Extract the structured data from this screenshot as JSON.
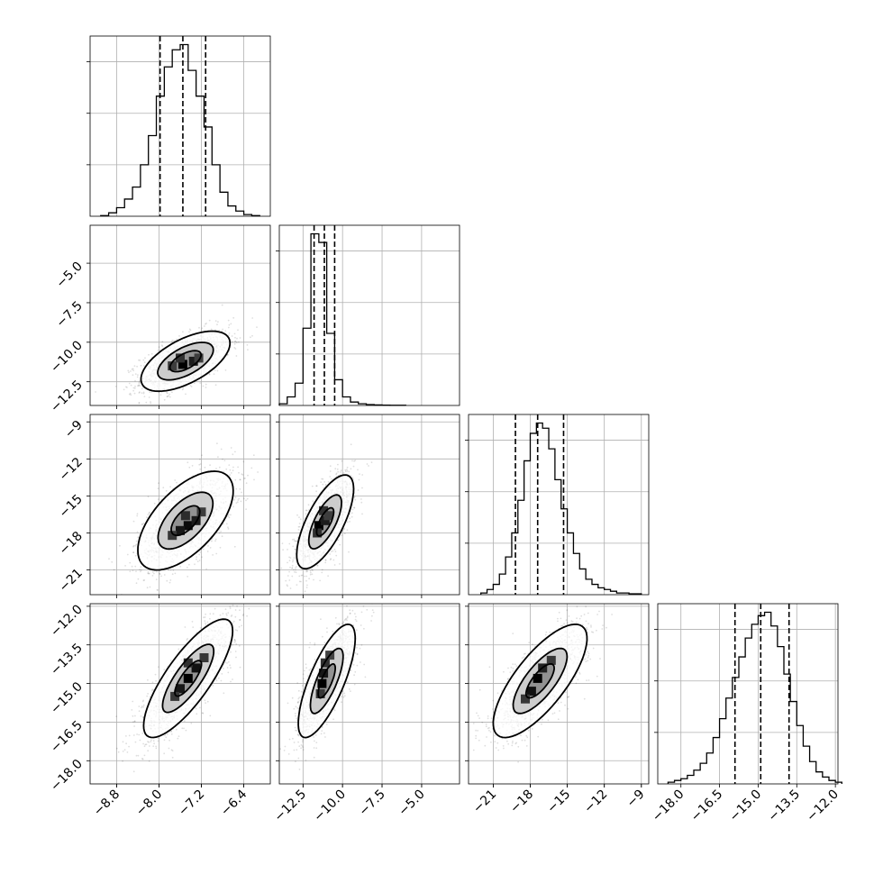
{
  "chart_data": {
    "type": "corner",
    "parameters": 4,
    "grid": true,
    "quantiles": [
      0.16,
      0.5,
      0.84
    ],
    "colors": {
      "ink": "#000000",
      "grid": "#b0b0b0",
      "scatter": "#808080"
    },
    "param_ranges": [
      [
        -9.3,
        -5.9
      ],
      [
        -14.0,
        -2.6
      ],
      [
        -23.0,
        -8.4
      ],
      [
        -18.9,
        -11.9
      ]
    ],
    "param_ticks": [
      [
        "−8.8",
        "−8.0",
        "−7.2",
        "−6.4"
      ],
      [
        "−12.5",
        "−10.0",
        "−7.5",
        "−5.0"
      ],
      [
        "−21",
        "−18",
        "−15",
        "−12",
        "−9"
      ],
      [
        "−18.0",
        "−16.5",
        "−15.0",
        "−13.5",
        "−12.0"
      ]
    ],
    "y_ticks": [
      null,
      [
        "−12.5",
        "−10.0",
        "−7.5",
        "−5.0"
      ],
      [
        "−21",
        "−18",
        "−15",
        "−12",
        "−9"
      ],
      [
        "−18.0",
        "−16.5",
        "−15.0",
        "−13.5",
        "−12.0"
      ]
    ],
    "marginals": [
      {
        "param": 0,
        "bin_edges": [
          -9.1,
          -8.95,
          -8.8,
          -8.65,
          -8.5,
          -8.35,
          -8.2,
          -8.05,
          -7.9,
          -7.75,
          -7.6,
          -7.45,
          -7.3,
          -7.15,
          -7.0,
          -6.85,
          -6.7,
          -6.55,
          -6.4,
          -6.25,
          -6.1
        ],
        "counts": [
          0.004,
          0.02,
          0.05,
          0.1,
          0.17,
          0.3,
          0.47,
          0.7,
          0.87,
          0.97,
          1.0,
          0.85,
          0.7,
          0.52,
          0.3,
          0.14,
          0.06,
          0.03,
          0.01,
          0.004
        ],
        "quantiles": [
          -7.98,
          -7.55,
          -7.12
        ],
        "y_ticks": [
          0.3,
          0.6,
          0.9
        ]
      },
      {
        "param": 1,
        "bin_edges": [
          -14.0,
          -13.5,
          -13.0,
          -12.5,
          -12.0,
          -11.5,
          -11.0,
          -10.5,
          -10.0,
          -9.5,
          -9.0,
          -8.5,
          -8.0,
          -7.5,
          -7.0,
          -6.5,
          -6.0
        ],
        "counts": [
          0.01,
          0.05,
          0.13,
          0.45,
          1.0,
          0.95,
          0.42,
          0.15,
          0.05,
          0.02,
          0.01,
          0.005,
          0.003,
          0.002,
          0.001,
          0.001
        ],
        "quantiles": [
          -11.8,
          -11.15,
          -10.5
        ],
        "y_ticks": [
          0.3,
          0.6,
          0.9
        ]
      },
      {
        "param": 2,
        "bin_edges": [
          -22.0,
          -21.5,
          -21.0,
          -20.5,
          -20.0,
          -19.5,
          -19.0,
          -18.5,
          -18.0,
          -17.5,
          -17.0,
          -16.5,
          -16.0,
          -15.5,
          -15.0,
          -14.5,
          -14.0,
          -13.5,
          -13.0,
          -12.5,
          -12.0,
          -11.5,
          -11.0,
          -10.5,
          -10.0,
          -9.5,
          -9.0
        ],
        "counts": [
          0.01,
          0.03,
          0.06,
          0.12,
          0.22,
          0.36,
          0.55,
          0.78,
          0.94,
          1.0,
          0.97,
          0.85,
          0.67,
          0.5,
          0.36,
          0.24,
          0.15,
          0.09,
          0.06,
          0.04,
          0.03,
          0.02,
          0.01,
          0.01,
          0.005,
          0.005
        ],
        "quantiles": [
          -19.2,
          -17.4,
          -15.3
        ],
        "y_ticks": [
          0.3,
          0.6,
          0.9
        ]
      },
      {
        "param": 3,
        "bin_edges": [
          -18.5,
          -18.25,
          -18.0,
          -17.75,
          -17.5,
          -17.25,
          -17.0,
          -16.75,
          -16.5,
          -16.25,
          -16.0,
          -15.75,
          -15.5,
          -15.25,
          -15.0,
          -14.75,
          -14.5,
          -14.25,
          -14.0,
          -13.75,
          -13.5,
          -13.25,
          -13.0,
          -12.75,
          -12.5,
          -12.25,
          -12.0,
          -11.75
        ],
        "counts": [
          0.01,
          0.02,
          0.03,
          0.05,
          0.08,
          0.12,
          0.18,
          0.27,
          0.38,
          0.5,
          0.62,
          0.74,
          0.85,
          0.93,
          0.98,
          1.0,
          0.92,
          0.8,
          0.64,
          0.48,
          0.34,
          0.22,
          0.13,
          0.07,
          0.04,
          0.02,
          0.01
        ],
        "quantiles": [
          -15.9,
          -14.9,
          -13.8
        ],
        "y_ticks": [
          0.3,
          0.6,
          0.9
        ]
      }
    ],
    "pairs": [
      {
        "x": 0,
        "y": 1,
        "mean": [
          -7.5,
          -11.2
        ],
        "sd": [
          0.42,
          0.95
        ],
        "corr": 0.6,
        "contour_sigmas": [
          0.7,
          1.25,
          2.0
        ],
        "peak_cells": [
          [
            -7.55,
            -11.4,
            1.0
          ],
          [
            -7.35,
            -11.2,
            0.75
          ],
          [
            -7.6,
            -11.0,
            0.55
          ],
          [
            -7.25,
            -11.0,
            0.45
          ],
          [
            -7.75,
            -11.5,
            0.45
          ]
        ]
      },
      {
        "x": 0,
        "y": 2,
        "mean": [
          -7.5,
          -17.0
        ],
        "sd": [
          0.45,
          2.0
        ],
        "corr": 0.6,
        "contour_sigmas": [
          0.6,
          1.15,
          2.0
        ],
        "peak_cells": [
          [
            -7.45,
            -17.4,
            0.9
          ],
          [
            -7.6,
            -17.8,
            0.8
          ],
          [
            -7.3,
            -17.0,
            0.75
          ],
          [
            -7.5,
            -16.6,
            0.6
          ],
          [
            -7.75,
            -18.2,
            0.5
          ],
          [
            -7.2,
            -16.3,
            0.45
          ]
        ]
      },
      {
        "x": 1,
        "y": 2,
        "mean": [
          -11.1,
          -17.1
        ],
        "sd": [
          0.9,
          1.9
        ],
        "corr": 0.7,
        "contour_sigmas": [
          0.6,
          1.15,
          2.0
        ],
        "peak_cells": [
          [
            -11.5,
            -17.4,
            1.0
          ],
          [
            -11.1,
            -17.0,
            0.75
          ],
          [
            -11.2,
            -16.2,
            0.55
          ],
          [
            -11.6,
            -18.0,
            0.55
          ],
          [
            -10.9,
            -16.6,
            0.45
          ]
        ]
      },
      {
        "x": 0,
        "y": 3,
        "mean": [
          -7.45,
          -14.8
        ],
        "sd": [
          0.42,
          1.15
        ],
        "corr": 0.8,
        "contour_sigmas": [
          0.6,
          1.15,
          2.0
        ],
        "peak_cells": [
          [
            -7.45,
            -14.8,
            1.0
          ],
          [
            -7.3,
            -14.4,
            0.85
          ],
          [
            -7.6,
            -15.2,
            0.8
          ],
          [
            -7.7,
            -15.5,
            0.5
          ],
          [
            -7.15,
            -14.0,
            0.5
          ],
          [
            -7.45,
            -14.2,
            0.55
          ]
        ]
      },
      {
        "x": 1,
        "y": 3,
        "mean": [
          -11.0,
          -14.9
        ],
        "sd": [
          0.9,
          1.1
        ],
        "corr": 0.75,
        "contour_sigmas": [
          0.6,
          1.15,
          2.0
        ],
        "peak_cells": [
          [
            -11.3,
            -15.0,
            1.0
          ],
          [
            -11.2,
            -14.6,
            0.8
          ],
          [
            -11.1,
            -14.2,
            0.55
          ],
          [
            -11.4,
            -15.4,
            0.5
          ],
          [
            -10.8,
            -13.9,
            0.4
          ]
        ]
      },
      {
        "x": 2,
        "y": 3,
        "mean": [
          -17.2,
          -14.9
        ],
        "sd": [
          1.9,
          1.1
        ],
        "corr": 0.75,
        "contour_sigmas": [
          0.6,
          1.15,
          2.0
        ],
        "peak_cells": [
          [
            -17.4,
            -14.8,
            1.0
          ],
          [
            -17.9,
            -15.3,
            0.85
          ],
          [
            -17.0,
            -14.4,
            0.7
          ],
          [
            -16.3,
            -14.1,
            0.5
          ],
          [
            -18.4,
            -15.6,
            0.5
          ]
        ]
      }
    ]
  }
}
